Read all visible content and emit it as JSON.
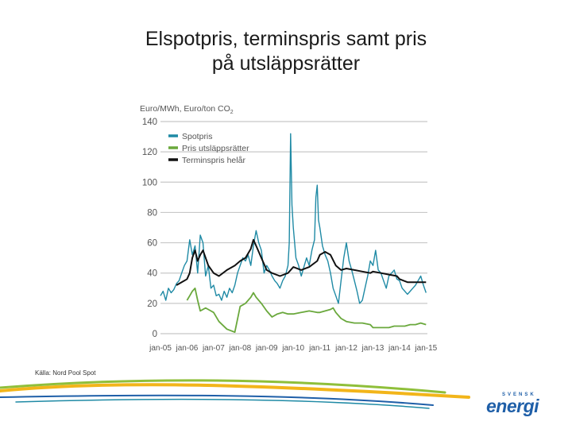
{
  "slide": {
    "title_line1": "Elspotpris, terminspris samt pris",
    "title_line2": "på utsläppsrätter",
    "source": "Källa: Nord Pool Spot",
    "logo_top": "SVENSK",
    "logo_main": "energi"
  },
  "colors": {
    "spot": "#1f8aa5",
    "co2": "#6aa83c",
    "forward": "#111111",
    "grid": "#c8c8c8",
    "axis_text": "#555555",
    "logo": "#1f5fa8"
  },
  "chart_data": {
    "type": "line",
    "ylabel": "Euro/MWh, Euro/ton CO",
    "ylabel_subscript": "2",
    "ylim": [
      0,
      140
    ],
    "y_ticks": [
      0,
      20,
      40,
      60,
      80,
      100,
      120,
      140
    ],
    "xlim": [
      2005,
      2015.05
    ],
    "x_ticks": [
      2005,
      2006,
      2007,
      2008,
      2009,
      2010,
      2011,
      2012,
      2013,
      2014,
      2015
    ],
    "x_tick_labels": [
      "jan-05",
      "jan-06",
      "jan-07",
      "jan-08",
      "jan-09",
      "jan-10",
      "jan-11",
      "jan-12",
      "jan-13",
      "jan-14",
      "jan-15"
    ],
    "grid": true,
    "legend_position": "top-left",
    "series": [
      {
        "name": "Spotpris",
        "color": "#1f8aa5",
        "x": [
          2005.0,
          2005.1,
          2005.2,
          2005.3,
          2005.4,
          2005.5,
          2005.6,
          2005.7,
          2005.8,
          2005.9,
          2006.0,
          2006.1,
          2006.2,
          2006.3,
          2006.4,
          2006.5,
          2006.6,
          2006.7,
          2006.8,
          2006.9,
          2007.0,
          2007.1,
          2007.2,
          2007.3,
          2007.4,
          2007.5,
          2007.6,
          2007.7,
          2007.8,
          2007.9,
          2008.0,
          2008.1,
          2008.2,
          2008.3,
          2008.4,
          2008.5,
          2008.6,
          2008.7,
          2008.8,
          2008.9,
          2009.0,
          2009.1,
          2009.2,
          2009.3,
          2009.4,
          2009.5,
          2009.6,
          2009.7,
          2009.8,
          2009.85,
          2009.9,
          2009.95,
          2010.0,
          2010.1,
          2010.2,
          2010.3,
          2010.4,
          2010.5,
          2010.6,
          2010.7,
          2010.8,
          2010.85,
          2010.9,
          2010.95,
          2011.0,
          2011.1,
          2011.2,
          2011.3,
          2011.4,
          2011.5,
          2011.6,
          2011.7,
          2011.8,
          2011.9,
          2012.0,
          2012.1,
          2012.2,
          2012.3,
          2012.4,
          2012.5,
          2012.6,
          2012.7,
          2012.8,
          2012.9,
          2013.0,
          2013.1,
          2013.2,
          2013.3,
          2013.4,
          2013.5,
          2013.6,
          2013.7,
          2013.8,
          2013.9,
          2014.0,
          2014.1,
          2014.2,
          2014.3,
          2014.4,
          2014.5,
          2014.6,
          2014.7,
          2014.8,
          2014.9,
          2015.0
        ],
        "y": [
          25,
          28,
          22,
          30,
          27,
          29,
          33,
          35,
          40,
          45,
          48,
          62,
          52,
          58,
          40,
          65,
          60,
          38,
          45,
          30,
          32,
          25,
          26,
          22,
          28,
          24,
          30,
          27,
          32,
          40,
          45,
          50,
          48,
          52,
          45,
          58,
          68,
          60,
          55,
          40,
          45,
          42,
          38,
          35,
          33,
          30,
          35,
          38,
          45,
          60,
          132,
          85,
          70,
          50,
          45,
          38,
          44,
          50,
          45,
          55,
          62,
          90,
          98,
          75,
          70,
          58,
          52,
          48,
          40,
          30,
          25,
          20,
          35,
          50,
          60,
          48,
          42,
          35,
          28,
          20,
          22,
          30,
          38,
          48,
          45,
          55,
          42,
          40,
          35,
          30,
          38,
          40,
          42,
          36,
          35,
          30,
          28,
          26,
          28,
          30,
          32,
          35,
          38,
          32,
          27
        ]
      },
      {
        "name": "Pris utsläppsrätter",
        "color": "#6aa83c",
        "x": [
          2005.0,
          2005.2,
          2005.4,
          2005.6,
          2005.8,
          2006.0,
          2006.1,
          2006.2,
          2006.3,
          2006.4,
          2006.5,
          2006.7,
          2006.9,
          2007.0,
          2007.2,
          2007.5,
          2007.8,
          2008.0,
          2008.2,
          2008.4,
          2008.5,
          2008.6,
          2008.8,
          2009.0,
          2009.2,
          2009.4,
          2009.6,
          2009.8,
          2010.0,
          2010.3,
          2010.6,
          2010.9,
          2011.0,
          2011.2,
          2011.4,
          2011.5,
          2011.6,
          2011.8,
          2012.0,
          2012.3,
          2012.6,
          2012.9,
          2013.0,
          2013.2,
          2013.4,
          2013.6,
          2013.8,
          2014.0,
          2014.2,
          2014.4,
          2014.6,
          2014.8,
          2015.0
        ],
        "y": [
          null,
          null,
          null,
          null,
          null,
          22,
          25,
          28,
          30,
          22,
          15,
          17,
          15,
          14,
          8,
          3,
          1,
          18,
          20,
          24,
          27,
          24,
          20,
          15,
          11,
          13,
          14,
          13,
          13,
          14,
          15,
          14,
          14,
          15,
          16,
          17,
          14,
          10,
          8,
          7,
          7,
          6,
          4,
          4,
          4,
          4,
          5,
          5,
          5,
          6,
          6,
          7,
          6
        ]
      },
      {
        "name": "Terminspris helår",
        "color": "#111111",
        "x": [
          2005.0,
          2005.3,
          2005.6,
          2005.9,
          2006.0,
          2006.1,
          2006.2,
          2006.3,
          2006.4,
          2006.5,
          2006.6,
          2006.8,
          2007.0,
          2007.2,
          2007.5,
          2007.8,
          2008.0,
          2008.2,
          2008.4,
          2008.5,
          2008.6,
          2008.8,
          2009.0,
          2009.2,
          2009.5,
          2009.8,
          2010.0,
          2010.3,
          2010.6,
          2010.9,
          2011.0,
          2011.2,
          2011.4,
          2011.6,
          2011.8,
          2012.0,
          2012.3,
          2012.6,
          2012.9,
          2013.0,
          2013.3,
          2013.6,
          2013.9,
          2014.0,
          2014.3,
          2014.6,
          2014.9,
          2015.0
        ],
        "y": [
          null,
          null,
          32,
          35,
          36,
          40,
          50,
          55,
          48,
          52,
          55,
          45,
          40,
          38,
          42,
          45,
          48,
          50,
          56,
          62,
          58,
          50,
          42,
          40,
          38,
          40,
          44,
          42,
          44,
          48,
          52,
          54,
          52,
          45,
          42,
          43,
          42,
          41,
          40,
          41,
          40,
          39,
          38,
          36,
          34,
          34,
          34,
          34
        ]
      }
    ]
  }
}
